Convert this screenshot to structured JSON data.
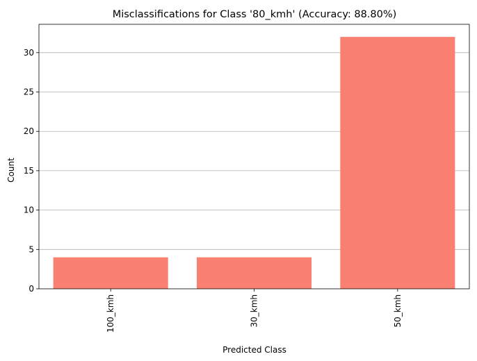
{
  "chart_data": {
    "type": "bar",
    "title": "Misclassifications for Class '80_kmh' (Accuracy: 88.80%)",
    "xlabel": "Predicted Class",
    "ylabel": "Count",
    "categories": [
      "100_kmh",
      "30_kmh",
      "50_kmh"
    ],
    "values": [
      4,
      4,
      32
    ],
    "ylim": [
      0,
      33.6
    ],
    "yticks": [
      0,
      5,
      10,
      15,
      20,
      25,
      30
    ],
    "grid": "horizontal",
    "bar_color": "#fa8072",
    "grid_color": "#b0b0b0"
  }
}
